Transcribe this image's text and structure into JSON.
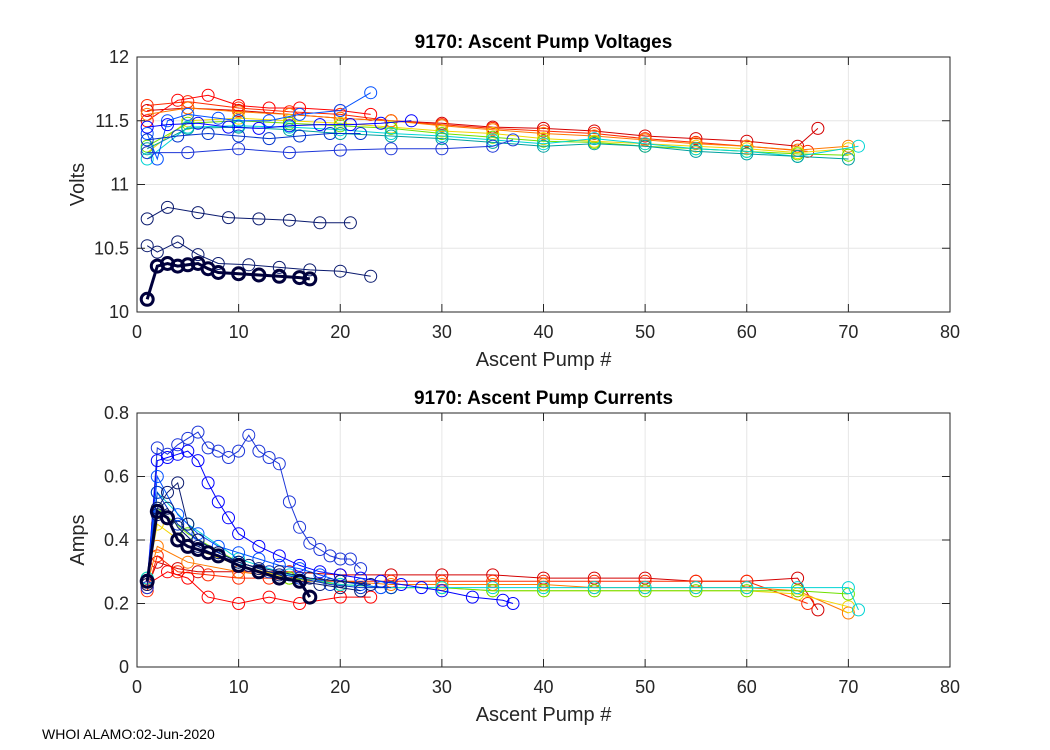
{
  "figure": {
    "footer": "WHOI ALAMO:02-Jun-2020"
  },
  "chart_data": [
    {
      "id": "voltages",
      "type": "scatter",
      "title": "9170: Ascent Pump Voltages",
      "xlabel": "Ascent Pump #",
      "ylabel": "Volts",
      "xlim": [
        0,
        80
      ],
      "ylim": [
        10,
        12
      ],
      "xticks": [
        0,
        10,
        20,
        30,
        40,
        50,
        60,
        70,
        80
      ],
      "yticks": [
        10,
        10.5,
        11,
        11.5,
        12
      ],
      "ytick_labels": [
        "10",
        "10.5",
        "11",
        "11.5",
        "12"
      ],
      "grid": true,
      "series": [
        {
          "name": "red-long",
          "color": "#d40000",
          "x": [
            1,
            5,
            10,
            15,
            20,
            25,
            30,
            35,
            40,
            45,
            50,
            55,
            60,
            65,
            67
          ],
          "y": [
            11.58,
            11.6,
            11.58,
            11.55,
            11.52,
            11.5,
            11.48,
            11.45,
            11.44,
            11.42,
            11.38,
            11.36,
            11.34,
            11.3,
            11.44
          ]
        },
        {
          "name": "red-2",
          "color": "#ff2a00",
          "x": [
            1,
            5,
            10,
            15,
            20,
            25,
            30,
            35,
            40,
            45,
            50,
            55,
            60,
            66
          ],
          "y": [
            11.62,
            11.65,
            11.6,
            11.57,
            11.55,
            11.5,
            11.47,
            11.44,
            11.42,
            11.4,
            11.36,
            11.33,
            11.3,
            11.26
          ]
        },
        {
          "name": "red-3",
          "color": "#ff0000",
          "x": [
            1,
            4,
            7,
            10,
            13,
            16,
            20,
            23
          ],
          "y": [
            11.5,
            11.66,
            11.7,
            11.62,
            11.6,
            11.6,
            11.58,
            11.55
          ]
        },
        {
          "name": "orange",
          "color": "#ff7a00",
          "x": [
            1,
            5,
            10,
            15,
            20,
            25,
            30,
            35,
            40,
            45,
            50,
            55,
            60,
            65,
            70
          ],
          "y": [
            11.55,
            11.6,
            11.57,
            11.55,
            11.52,
            11.5,
            11.46,
            11.43,
            11.4,
            11.38,
            11.35,
            11.32,
            11.3,
            11.27,
            11.3
          ]
        },
        {
          "name": "yellow",
          "color": "#f3d500",
          "x": [
            1,
            5,
            10,
            15,
            20,
            25,
            30,
            35,
            40,
            45,
            50,
            55,
            60,
            65,
            70
          ],
          "y": [
            11.25,
            11.5,
            11.52,
            11.5,
            11.48,
            11.45,
            11.42,
            11.4,
            11.36,
            11.34,
            11.32,
            11.3,
            11.28,
            11.25,
            11.28
          ]
        },
        {
          "name": "green",
          "color": "#6ee000",
          "x": [
            1,
            5,
            10,
            15,
            20,
            25,
            30,
            35,
            40,
            45,
            50,
            55,
            60,
            65,
            70
          ],
          "y": [
            11.3,
            11.48,
            11.5,
            11.48,
            11.46,
            11.44,
            11.4,
            11.37,
            11.34,
            11.33,
            11.3,
            11.28,
            11.26,
            11.24,
            11.23
          ]
        },
        {
          "name": "cyan",
          "color": "#00d4d4",
          "x": [
            1,
            5,
            10,
            15,
            20,
            25,
            30,
            35,
            40,
            45,
            50,
            55,
            60,
            65,
            71
          ],
          "y": [
            11.2,
            11.45,
            11.46,
            11.45,
            11.43,
            11.4,
            11.38,
            11.35,
            11.32,
            11.36,
            11.32,
            11.28,
            11.26,
            11.22,
            11.3
          ]
        },
        {
          "name": "teal",
          "color": "#00a0a0",
          "x": [
            1,
            5,
            10,
            15,
            20,
            25,
            30,
            35,
            40,
            45,
            50,
            55,
            60,
            65,
            70
          ],
          "y": [
            11.28,
            11.44,
            11.45,
            11.43,
            11.4,
            11.38,
            11.36,
            11.33,
            11.3,
            11.32,
            11.3,
            11.26,
            11.24,
            11.22,
            11.2
          ]
        },
        {
          "name": "blue-1",
          "color": "#0050ff",
          "x": [
            1,
            2,
            3,
            5,
            8,
            10,
            13,
            16,
            20,
            23
          ],
          "y": [
            11.4,
            11.2,
            11.5,
            11.55,
            11.52,
            11.5,
            11.5,
            11.55,
            11.58,
            11.72
          ]
        },
        {
          "name": "blue-2",
          "color": "#1c36d8",
          "x": [
            1,
            5,
            10,
            15,
            20,
            25,
            30,
            35,
            37
          ],
          "y": [
            11.25,
            11.25,
            11.28,
            11.25,
            11.27,
            11.28,
            11.28,
            11.3,
            11.35
          ]
        },
        {
          "name": "blue-3",
          "color": "#0000ff",
          "x": [
            1,
            3,
            6,
            9,
            12,
            15,
            18,
            21,
            24,
            27
          ],
          "y": [
            11.45,
            11.47,
            11.48,
            11.45,
            11.44,
            11.46,
            11.47,
            11.47,
            11.48,
            11.5
          ]
        },
        {
          "name": "blue-4",
          "color": "#0033cc",
          "x": [
            1,
            4,
            7,
            10,
            13,
            16,
            19,
            22
          ],
          "y": [
            11.35,
            11.38,
            11.4,
            11.38,
            11.36,
            11.38,
            11.4,
            11.4
          ]
        },
        {
          "name": "navy-1",
          "color": "#0a1a6e",
          "x": [
            1,
            3,
            6,
            9,
            12,
            15,
            18,
            21
          ],
          "y": [
            10.73,
            10.82,
            10.78,
            10.74,
            10.73,
            10.72,
            10.7,
            10.7
          ]
        },
        {
          "name": "navy-2",
          "color": "#0a1a6e",
          "x": [
            1,
            2,
            4,
            6,
            8,
            11,
            14,
            17,
            20,
            23
          ],
          "y": [
            10.52,
            10.47,
            10.55,
            10.45,
            10.38,
            10.37,
            10.35,
            10.33,
            10.32,
            10.28
          ]
        },
        {
          "name": "navy-bold",
          "color": "#00003c",
          "bold": true,
          "x": [
            1,
            2,
            3,
            4,
            5,
            6,
            7,
            8,
            10,
            12,
            14,
            16,
            17
          ],
          "y": [
            10.1,
            10.36,
            10.38,
            10.36,
            10.37,
            10.38,
            10.34,
            10.31,
            10.3,
            10.29,
            10.28,
            10.27,
            10.26
          ]
        }
      ]
    },
    {
      "id": "currents",
      "type": "scatter",
      "title": "9170: Ascent Pump Currents",
      "xlabel": "Ascent Pump #",
      "ylabel": "Amps",
      "xlim": [
        0,
        80
      ],
      "ylim": [
        0,
        0.8
      ],
      "xticks": [
        0,
        10,
        20,
        30,
        40,
        50,
        60,
        70,
        80
      ],
      "yticks": [
        0,
        0.2,
        0.4,
        0.6,
        0.8
      ],
      "ytick_labels": [
        "0",
        "0.2",
        "0.4",
        "0.6",
        "0.8"
      ],
      "grid": true,
      "series": [
        {
          "name": "red-long",
          "color": "#d40000",
          "x": [
            1,
            2,
            4,
            6,
            10,
            15,
            20,
            25,
            30,
            35,
            40,
            45,
            50,
            55,
            60,
            65,
            67
          ],
          "y": [
            0.25,
            0.33,
            0.31,
            0.3,
            0.3,
            0.3,
            0.29,
            0.29,
            0.29,
            0.29,
            0.28,
            0.28,
            0.28,
            0.27,
            0.27,
            0.28,
            0.18
          ]
        },
        {
          "name": "red-2",
          "color": "#ff2a00",
          "x": [
            1,
            2,
            4,
            7,
            10,
            13,
            16,
            20,
            25,
            30,
            35,
            40,
            45,
            50,
            55,
            60,
            66
          ],
          "y": [
            0.24,
            0.35,
            0.3,
            0.29,
            0.28,
            0.28,
            0.27,
            0.27,
            0.27,
            0.27,
            0.27,
            0.27,
            0.27,
            0.27,
            0.27,
            0.27,
            0.2
          ]
        },
        {
          "name": "red-3",
          "color": "#ff0000",
          "x": [
            1,
            3,
            5,
            7,
            10,
            13,
            16,
            20,
            23
          ],
          "y": [
            0.26,
            0.3,
            0.28,
            0.22,
            0.2,
            0.22,
            0.2,
            0.22,
            0.22
          ]
        },
        {
          "name": "orange",
          "color": "#ff7a00",
          "x": [
            1,
            2,
            5,
            10,
            15,
            20,
            25,
            30,
            35,
            40,
            45,
            50,
            55,
            60,
            65,
            70
          ],
          "y": [
            0.26,
            0.38,
            0.33,
            0.3,
            0.28,
            0.27,
            0.26,
            0.26,
            0.26,
            0.26,
            0.25,
            0.25,
            0.25,
            0.25,
            0.24,
            0.17
          ]
        },
        {
          "name": "yellow",
          "color": "#f3d500",
          "x": [
            1,
            2,
            5,
            10,
            15,
            20,
            25,
            30,
            35,
            40,
            45,
            50,
            55,
            60,
            65,
            70
          ],
          "y": [
            0.27,
            0.45,
            0.38,
            0.32,
            0.28,
            0.26,
            0.25,
            0.25,
            0.24,
            0.24,
            0.24,
            0.24,
            0.24,
            0.24,
            0.23,
            0.19
          ]
        },
        {
          "name": "green",
          "color": "#6ee000",
          "x": [
            1,
            2,
            5,
            10,
            15,
            20,
            25,
            30,
            35,
            40,
            45,
            50,
            55,
            60,
            65,
            70
          ],
          "y": [
            0.28,
            0.5,
            0.42,
            0.33,
            0.28,
            0.26,
            0.25,
            0.25,
            0.24,
            0.24,
            0.24,
            0.24,
            0.24,
            0.24,
            0.24,
            0.23
          ]
        },
        {
          "name": "cyan",
          "color": "#00d4d4",
          "x": [
            1,
            2,
            5,
            10,
            15,
            20,
            25,
            30,
            35,
            40,
            45,
            50,
            55,
            60,
            65,
            70,
            71
          ],
          "y": [
            0.28,
            0.55,
            0.45,
            0.34,
            0.29,
            0.26,
            0.25,
            0.25,
            0.25,
            0.25,
            0.25,
            0.25,
            0.25,
            0.25,
            0.25,
            0.25,
            0.18
          ]
        },
        {
          "name": "blue-1",
          "color": "#1c36d8",
          "x": [
            1,
            2,
            3,
            4,
            5,
            6,
            7,
            8,
            9,
            10,
            11,
            12,
            13,
            14,
            15,
            16,
            17,
            18,
            19,
            20,
            21,
            22
          ],
          "y": [
            0.25,
            0.69,
            0.67,
            0.7,
            0.72,
            0.74,
            0.69,
            0.68,
            0.66,
            0.68,
            0.73,
            0.68,
            0.66,
            0.64,
            0.52,
            0.44,
            0.39,
            0.37,
            0.35,
            0.34,
            0.34,
            0.31
          ]
        },
        {
          "name": "blue-2",
          "color": "#0000ff",
          "x": [
            1,
            2,
            3,
            4,
            5,
            6,
            7,
            8,
            9,
            10,
            12,
            14,
            16,
            18,
            20,
            22,
            24,
            26,
            28,
            30,
            33,
            36,
            37
          ],
          "y": [
            0.27,
            0.65,
            0.66,
            0.67,
            0.68,
            0.65,
            0.58,
            0.52,
            0.47,
            0.42,
            0.38,
            0.35,
            0.32,
            0.3,
            0.29,
            0.28,
            0.27,
            0.26,
            0.25,
            0.24,
            0.22,
            0.21,
            0.2
          ]
        },
        {
          "name": "blue-3",
          "color": "#0050ff",
          "x": [
            1,
            2,
            4,
            6,
            8,
            10,
            12,
            14,
            16,
            18,
            20,
            22,
            24
          ],
          "y": [
            0.27,
            0.6,
            0.48,
            0.42,
            0.38,
            0.36,
            0.34,
            0.32,
            0.31,
            0.29,
            0.27,
            0.26,
            0.25
          ]
        },
        {
          "name": "blue-4",
          "color": "#0033cc",
          "x": [
            1,
            2,
            4,
            6,
            8,
            10,
            13,
            16,
            19,
            22,
            25
          ],
          "y": [
            0.27,
            0.55,
            0.45,
            0.4,
            0.36,
            0.33,
            0.3,
            0.28,
            0.26,
            0.25,
            0.25
          ]
        },
        {
          "name": "navy-1",
          "color": "#0a1a6e",
          "x": [
            1,
            2,
            3,
            4,
            5,
            6,
            8,
            10,
            12,
            14,
            16,
            18,
            20,
            22
          ],
          "y": [
            0.27,
            0.5,
            0.55,
            0.58,
            0.45,
            0.4,
            0.36,
            0.33,
            0.31,
            0.29,
            0.27,
            0.26,
            0.25,
            0.24
          ]
        },
        {
          "name": "navy-2",
          "color": "#0a1a6e",
          "x": [
            1,
            2,
            3,
            4,
            6,
            8,
            11,
            14,
            17,
            20,
            23
          ],
          "y": [
            0.26,
            0.48,
            0.5,
            0.44,
            0.38,
            0.35,
            0.32,
            0.3,
            0.28,
            0.27,
            0.26
          ]
        },
        {
          "name": "navy-bold",
          "color": "#00003c",
          "bold": true,
          "x": [
            1,
            2,
            3,
            4,
            5,
            6,
            7,
            8,
            10,
            12,
            14,
            16,
            17
          ],
          "y": [
            0.27,
            0.49,
            0.47,
            0.4,
            0.38,
            0.37,
            0.36,
            0.35,
            0.32,
            0.3,
            0.28,
            0.27,
            0.22
          ]
        }
      ]
    }
  ]
}
